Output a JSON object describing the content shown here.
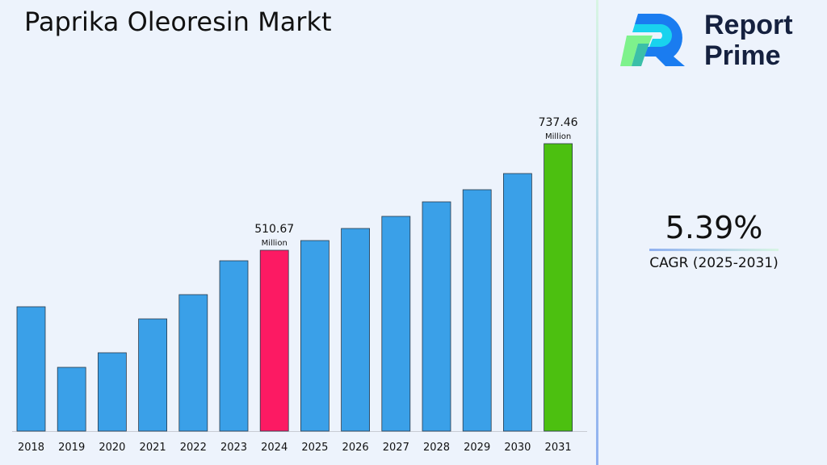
{
  "title": "Paprika Oleoresin Markt",
  "logo": {
    "line1": "Report",
    "line2": "Prime"
  },
  "cagr": {
    "value": "5.39%",
    "label": "CAGR (2025-2031)"
  },
  "colors": {
    "default_bar": "#3aa0e8",
    "highlight_2024": "#fc1a63",
    "highlight_2031": "#4cc010"
  },
  "chart_data": {
    "type": "bar",
    "categories": [
      "2018",
      "2019",
      "2020",
      "2021",
      "2022",
      "2023",
      "2024",
      "2025",
      "2026",
      "2027",
      "2028",
      "2029",
      "2030",
      "2031"
    ],
    "values": [
      390.4,
      261.5,
      292.5,
      364.6,
      416.2,
      488.3,
      510.67,
      531.3,
      557.0,
      582.8,
      613.7,
      639.5,
      673.9,
      737.46
    ],
    "unit": "Million",
    "data_labels": [
      {
        "category": "2024",
        "value": "510.67",
        "unit": "Million"
      },
      {
        "category": "2031",
        "value": "737.46",
        "unit": "Million"
      }
    ],
    "xlabel": "",
    "ylabel": "",
    "grid": false
  }
}
